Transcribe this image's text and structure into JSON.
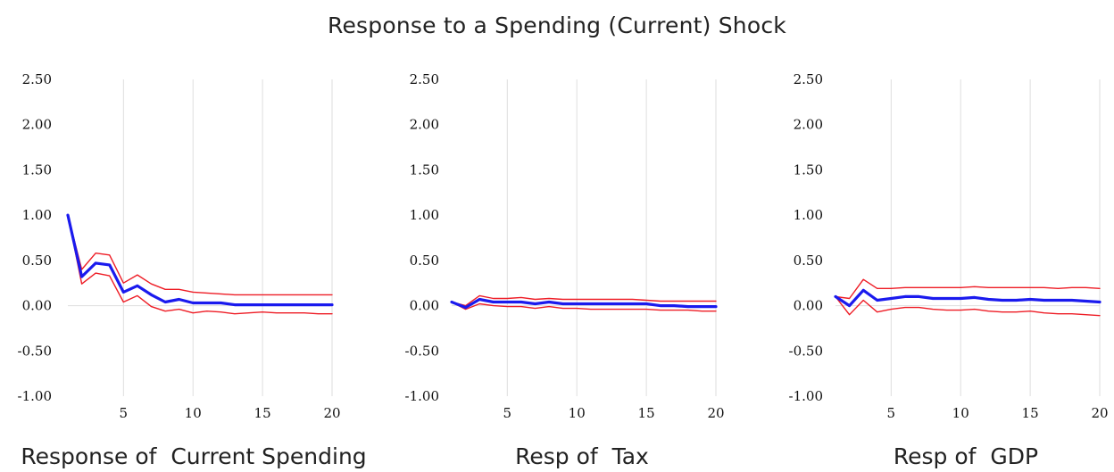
{
  "title": "Response to a Spending (Current) Shock",
  "colors": {
    "response": "#1a1aee",
    "bands": "#ee1c25",
    "grid": "#dedede"
  },
  "chart_data": [
    {
      "type": "line",
      "title": "Response of  Current Spending",
      "xlabel": "",
      "ylabel": "",
      "xlim": [
        1,
        20
      ],
      "ylim": [
        -1.0,
        2.5
      ],
      "x_ticks": [
        5,
        10,
        15,
        20
      ],
      "y_ticks": [
        "2.50",
        "2.00",
        "1.50",
        "1.00",
        "0.50",
        "0.00",
        "-0.50",
        "-1.00"
      ],
      "grid": "vertical",
      "x": [
        1,
        2,
        3,
        4,
        5,
        6,
        7,
        8,
        9,
        10,
        11,
        12,
        13,
        14,
        15,
        16,
        17,
        18,
        19,
        20
      ],
      "series": [
        {
          "role": "response",
          "values": [
            1.0,
            0.32,
            0.47,
            0.45,
            0.15,
            0.22,
            0.12,
            0.04,
            0.07,
            0.03,
            0.03,
            0.03,
            0.01,
            0.01,
            0.01,
            0.01,
            0.01,
            0.01,
            0.01,
            0.01
          ]
        },
        {
          "role": "upper",
          "values": [
            1.0,
            0.4,
            0.58,
            0.56,
            0.25,
            0.34,
            0.24,
            0.18,
            0.18,
            0.15,
            0.14,
            0.13,
            0.12,
            0.12,
            0.12,
            0.12,
            0.12,
            0.12,
            0.12,
            0.12
          ]
        },
        {
          "role": "lower",
          "values": [
            1.0,
            0.24,
            0.36,
            0.33,
            0.04,
            0.11,
            -0.01,
            -0.06,
            -0.04,
            -0.08,
            -0.06,
            -0.07,
            -0.09,
            -0.08,
            -0.07,
            -0.08,
            -0.08,
            -0.08,
            -0.09,
            -0.09
          ]
        }
      ]
    },
    {
      "type": "line",
      "title": "Resp of  Tax",
      "xlabel": "",
      "ylabel": "",
      "xlim": [
        1,
        20
      ],
      "ylim": [
        -1.0,
        2.5
      ],
      "x_ticks": [
        5,
        10,
        15,
        20
      ],
      "y_ticks": [
        "2.50",
        "2.00",
        "1.50",
        "1.00",
        "0.50",
        "0.00",
        "-0.50",
        "-1.00"
      ],
      "grid": "vertical",
      "x": [
        1,
        2,
        3,
        4,
        5,
        6,
        7,
        8,
        9,
        10,
        11,
        12,
        13,
        14,
        15,
        16,
        17,
        18,
        19,
        20
      ],
      "series": [
        {
          "role": "response",
          "values": [
            0.04,
            -0.02,
            0.07,
            0.04,
            0.04,
            0.04,
            0.02,
            0.04,
            0.02,
            0.02,
            0.02,
            0.02,
            0.02,
            0.02,
            0.02,
            0.0,
            0.0,
            -0.01,
            -0.01,
            -0.01
          ]
        },
        {
          "role": "upper",
          "values": [
            0.04,
            0.0,
            0.11,
            0.08,
            0.08,
            0.09,
            0.07,
            0.08,
            0.07,
            0.07,
            0.07,
            0.07,
            0.07,
            0.07,
            0.06,
            0.05,
            0.05,
            0.05,
            0.05,
            0.05
          ]
        },
        {
          "role": "lower",
          "values": [
            0.04,
            -0.04,
            0.02,
            0.0,
            -0.01,
            -0.01,
            -0.03,
            -0.01,
            -0.03,
            -0.03,
            -0.04,
            -0.04,
            -0.04,
            -0.04,
            -0.04,
            -0.05,
            -0.05,
            -0.05,
            -0.06,
            -0.06
          ]
        }
      ]
    },
    {
      "type": "line",
      "title": "Resp of  GDP",
      "xlabel": "",
      "ylabel": "",
      "xlim": [
        1,
        20
      ],
      "ylim": [
        -1.0,
        2.5
      ],
      "x_ticks": [
        5,
        10,
        15,
        20
      ],
      "y_ticks": [
        "2.50",
        "2.00",
        "1.50",
        "1.00",
        "0.50",
        "0.00",
        "-0.50",
        "-1.00"
      ],
      "grid": "vertical",
      "x": [
        1,
        2,
        3,
        4,
        5,
        6,
        7,
        8,
        9,
        10,
        11,
        12,
        13,
        14,
        15,
        16,
        17,
        18,
        19,
        20
      ],
      "series": [
        {
          "role": "response",
          "values": [
            0.1,
            0.0,
            0.17,
            0.06,
            0.08,
            0.1,
            0.1,
            0.08,
            0.08,
            0.08,
            0.09,
            0.07,
            0.06,
            0.06,
            0.07,
            0.06,
            0.06,
            0.06,
            0.05,
            0.04
          ]
        },
        {
          "role": "upper",
          "values": [
            0.1,
            0.08,
            0.29,
            0.19,
            0.19,
            0.2,
            0.2,
            0.2,
            0.2,
            0.2,
            0.21,
            0.2,
            0.2,
            0.2,
            0.2,
            0.2,
            0.19,
            0.2,
            0.2,
            0.19
          ]
        },
        {
          "role": "lower",
          "values": [
            0.1,
            -0.1,
            0.06,
            -0.07,
            -0.04,
            -0.02,
            -0.02,
            -0.04,
            -0.05,
            -0.05,
            -0.04,
            -0.06,
            -0.07,
            -0.07,
            -0.06,
            -0.08,
            -0.09,
            -0.09,
            -0.1,
            -0.11
          ]
        }
      ]
    }
  ]
}
